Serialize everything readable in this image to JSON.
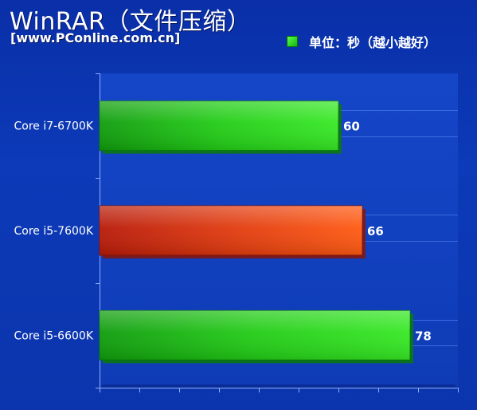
{
  "chart_data": {
    "type": "bar",
    "orientation": "horizontal",
    "title": "WinRAR（文件压缩）",
    "source": "[www.PConline.com.cn]",
    "legend": {
      "label": "单位：秒（越小越好）",
      "placement": "top-right"
    },
    "categories": [
      "Core i7-6700K",
      "Core i5-7600K",
      "Core i5-6600K"
    ],
    "values": [
      60,
      66,
      78
    ],
    "bar_colors": [
      "#22cc16",
      "#e8440e",
      "#22cc16"
    ],
    "xlim": [
      0,
      90
    ],
    "grid": true
  }
}
